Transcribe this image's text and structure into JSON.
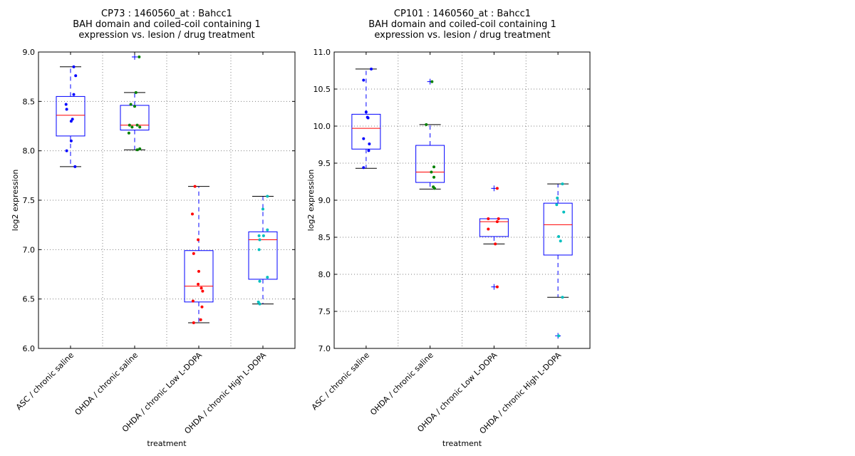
{
  "chart_data": [
    {
      "type": "boxplot",
      "title": [
        "CP73 : 1460560_at : Bahcc1",
        "BAH domain and coiled-coil containing 1",
        "expression vs. lesion / drug treatment"
      ],
      "xlabel": "treatment",
      "ylabel": "log2 expression",
      "ylim": [
        6.0,
        9.0
      ],
      "yticks": [
        "6.0",
        "6.5",
        "7.0",
        "7.5",
        "8.0",
        "8.5",
        "9.0"
      ],
      "ytick_values": [
        6.0,
        6.5,
        7.0,
        7.5,
        8.0,
        8.5,
        9.0
      ],
      "grid": true,
      "categories": [
        "ASC / chronic saline",
        "OHDA / chronic saline",
        "OHDA / chronic Low L-DOPA",
        "OHDA / chronic High L-DOPA"
      ],
      "colors": [
        "#0000ff",
        "#008000",
        "#ff0000",
        "#00bfbf"
      ],
      "groups": [
        {
          "box": {
            "q1": 8.15,
            "median": 8.36,
            "q3": 8.55,
            "whisker_low": 7.84,
            "whisker_high": 8.85
          },
          "outliers": [],
          "points": [
            [
              8.85,
              0.05
            ],
            [
              8.76,
              0.08
            ],
            [
              8.57,
              0.05
            ],
            [
              8.47,
              -0.07
            ],
            [
              8.42,
              -0.06
            ],
            [
              8.32,
              0.03
            ],
            [
              8.3,
              0.01
            ],
            [
              8.1,
              0.01
            ],
            [
              8.0,
              -0.06
            ],
            [
              7.84,
              0.07
            ]
          ]
        },
        {
          "box": {
            "q1": 8.21,
            "median": 8.26,
            "q3": 8.46,
            "whisker_low": 8.01,
            "whisker_high": 8.59
          },
          "outliers": [
            8.95
          ],
          "points": [
            [
              8.95,
              0.07
            ],
            [
              8.59,
              0.02
            ],
            [
              8.47,
              -0.06
            ],
            [
              8.45,
              0.0
            ],
            [
              8.26,
              -0.08
            ],
            [
              8.26,
              0.04
            ],
            [
              8.24,
              -0.04
            ],
            [
              8.24,
              0.08
            ],
            [
              8.18,
              -0.09
            ],
            [
              8.01,
              0.04
            ],
            [
              8.02,
              0.08
            ]
          ]
        },
        {
          "box": {
            "q1": 6.47,
            "median": 6.63,
            "q3": 6.99,
            "whisker_low": 6.26,
            "whisker_high": 7.64
          },
          "outliers": [],
          "points": [
            [
              7.64,
              -0.06
            ],
            [
              7.36,
              -0.1
            ],
            [
              7.1,
              -0.01
            ],
            [
              6.96,
              -0.08
            ],
            [
              6.78,
              0.0
            ],
            [
              6.65,
              -0.01
            ],
            [
              6.61,
              0.04
            ],
            [
              6.58,
              0.06
            ],
            [
              6.48,
              -0.09
            ],
            [
              6.42,
              0.05
            ],
            [
              6.29,
              0.03
            ],
            [
              6.26,
              -0.08
            ]
          ]
        },
        {
          "box": {
            "q1": 6.7,
            "median": 7.1,
            "q3": 7.18,
            "whisker_low": 6.45,
            "whisker_high": 7.54
          },
          "outliers": [],
          "points": [
            [
              7.54,
              0.07
            ],
            [
              7.41,
              0.0
            ],
            [
              7.2,
              0.07
            ],
            [
              7.14,
              -0.06
            ],
            [
              7.14,
              0.01
            ],
            [
              7.1,
              -0.05
            ],
            [
              7.0,
              -0.06
            ],
            [
              6.72,
              0.07
            ],
            [
              6.68,
              -0.05
            ],
            [
              6.47,
              -0.07
            ],
            [
              6.45,
              -0.05
            ]
          ]
        }
      ]
    },
    {
      "type": "boxplot",
      "title": [
        "CP101 : 1460560_at : Bahcc1",
        "BAH domain and coiled-coil containing 1",
        "expression vs. lesion / drug treatment"
      ],
      "xlabel": "treatment",
      "ylabel": "log2 expression",
      "ylim": [
        7.0,
        11.0
      ],
      "yticks": [
        "7.0",
        "7.5",
        "8.0",
        "8.5",
        "9.0",
        "9.5",
        "10.0",
        "10.5",
        "11.0"
      ],
      "ytick_values": [
        7.0,
        7.5,
        8.0,
        8.5,
        9.0,
        9.5,
        10.0,
        10.5,
        11.0
      ],
      "grid": true,
      "categories": [
        "ASC / chronic saline",
        "OHDA / chronic saline",
        "OHDA / chronic Low L-DOPA",
        "OHDA / chronic High L-DOPA"
      ],
      "colors": [
        "#0000ff",
        "#008000",
        "#ff0000",
        "#00bfbf"
      ],
      "groups": [
        {
          "box": {
            "q1": 9.69,
            "median": 9.97,
            "q3": 10.16,
            "whisker_low": 9.43,
            "whisker_high": 10.77
          },
          "outliers": [],
          "points": [
            [
              10.77,
              0.08
            ],
            [
              10.62,
              -0.04
            ],
            [
              10.19,
              0.0
            ],
            [
              10.12,
              0.02
            ],
            [
              10.11,
              0.03
            ],
            [
              9.83,
              -0.04
            ],
            [
              9.76,
              0.05
            ],
            [
              9.67,
              0.04
            ],
            [
              9.44,
              -0.04
            ]
          ]
        },
        {
          "box": {
            "q1": 9.24,
            "median": 9.38,
            "q3": 9.74,
            "whisker_low": 9.15,
            "whisker_high": 10.02
          },
          "outliers": [
            10.6
          ],
          "points": [
            [
              10.6,
              0.03
            ],
            [
              10.02,
              -0.06
            ],
            [
              9.45,
              0.06
            ],
            [
              9.38,
              0.02
            ],
            [
              9.31,
              0.06
            ],
            [
              9.18,
              0.05
            ],
            [
              9.16,
              0.07
            ]
          ]
        },
        {
          "box": {
            "q1": 8.51,
            "median": 8.71,
            "q3": 8.75,
            "whisker_low": 8.41,
            "whisker_high": 8.75
          },
          "outliers": [
            9.16,
            7.83
          ],
          "points": [
            [
              9.16,
              0.05
            ],
            [
              8.75,
              -0.09
            ],
            [
              8.75,
              0.07
            ],
            [
              8.71,
              0.05
            ],
            [
              8.61,
              -0.09
            ],
            [
              8.41,
              0.02
            ],
            [
              7.83,
              0.05
            ]
          ]
        },
        {
          "box": {
            "q1": 8.26,
            "median": 8.67,
            "q3": 8.96,
            "whisker_low": 7.69,
            "whisker_high": 9.22
          },
          "outliers": [
            7.17
          ],
          "points": [
            [
              9.22,
              0.07
            ],
            [
              9.03,
              -0.01
            ],
            [
              8.94,
              -0.02
            ],
            [
              8.84,
              0.09
            ],
            [
              8.51,
              0.01
            ],
            [
              8.45,
              0.04
            ],
            [
              7.69,
              0.07
            ],
            [
              7.17,
              0.01
            ]
          ]
        }
      ]
    }
  ]
}
